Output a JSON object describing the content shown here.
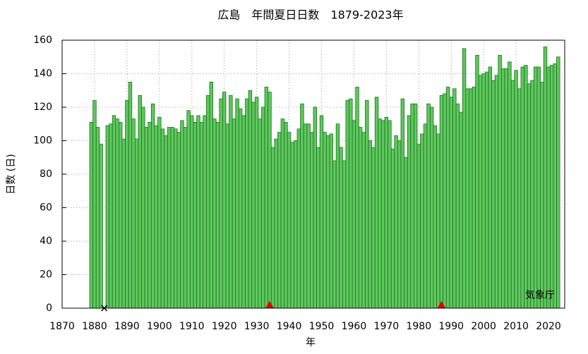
{
  "chart_data": {
    "type": "bar",
    "title": "広島　年間夏日日数　1879-2023年",
    "xlabel": "年",
    "ylabel": "日数 (日)",
    "annotation": "気象庁",
    "x": [
      1879,
      1880,
      1881,
      1882,
      1883,
      1884,
      1885,
      1886,
      1887,
      1888,
      1889,
      1890,
      1891,
      1892,
      1893,
      1894,
      1895,
      1896,
      1897,
      1898,
      1899,
      1900,
      1901,
      1902,
      1903,
      1904,
      1905,
      1906,
      1907,
      1908,
      1909,
      1910,
      1911,
      1912,
      1913,
      1914,
      1915,
      1916,
      1917,
      1918,
      1919,
      1920,
      1921,
      1922,
      1923,
      1924,
      1925,
      1926,
      1927,
      1928,
      1929,
      1930,
      1931,
      1932,
      1933,
      1934,
      1935,
      1936,
      1937,
      1938,
      1939,
      1940,
      1941,
      1942,
      1943,
      1944,
      1945,
      1946,
      1947,
      1948,
      1949,
      1950,
      1951,
      1952,
      1953,
      1954,
      1955,
      1956,
      1957,
      1958,
      1959,
      1960,
      1961,
      1962,
      1963,
      1964,
      1965,
      1966,
      1967,
      1968,
      1969,
      1970,
      1971,
      1972,
      1973,
      1974,
      1975,
      1976,
      1977,
      1978,
      1979,
      1980,
      1981,
      1982,
      1983,
      1984,
      1985,
      1986,
      1987,
      1988,
      1989,
      1990,
      1991,
      1992,
      1993,
      1994,
      1995,
      1996,
      1997,
      1998,
      1999,
      2000,
      2001,
      2002,
      2003,
      2004,
      2005,
      2006,
      2007,
      2008,
      2009,
      2010,
      2011,
      2012,
      2013,
      2014,
      2015,
      2016,
      2017,
      2018,
      2019,
      2020,
      2021,
      2022,
      2023
    ],
    "values": [
      111,
      124,
      108,
      98,
      null,
      109,
      110,
      115,
      113,
      111,
      101,
      124,
      135,
      113,
      101,
      127,
      120,
      108,
      111,
      122,
      109,
      114,
      107,
      103,
      108,
      108,
      107,
      105,
      112,
      108,
      118,
      115,
      111,
      115,
      111,
      115,
      127,
      135,
      113,
      111,
      125,
      129,
      110,
      127,
      113,
      125,
      119,
      115,
      125,
      130,
      123,
      126,
      113,
      120,
      132,
      129,
      96,
      101,
      105,
      113,
      111,
      105,
      99,
      100,
      107,
      122,
      110,
      110,
      105,
      120,
      96,
      115,
      105,
      103,
      104,
      88,
      110,
      96,
      88,
      124,
      125,
      112,
      132,
      108,
      105,
      124,
      100,
      96,
      126,
      113,
      112,
      114,
      112,
      95,
      103,
      100,
      125,
      90,
      115,
      122,
      122,
      98,
      104,
      110,
      122,
      120,
      109,
      104,
      127,
      128,
      132,
      126,
      131,
      122,
      117,
      155,
      131,
      131,
      132,
      151,
      139,
      140,
      141,
      144,
      136,
      139,
      151,
      143,
      143,
      147,
      136,
      142,
      131,
      144,
      145,
      134,
      136,
      144,
      144,
      135,
      156,
      144,
      145,
      146,
      150
    ],
    "color": "#5ec85e",
    "edgecolor": "#1f6e1f",
    "markers": [
      {
        "x": 1883,
        "symbol": "cross",
        "color": "#000000"
      },
      {
        "x": 1934,
        "symbol": "triangle",
        "color": "#e00000"
      },
      {
        "x": 1987,
        "symbol": "triangle",
        "color": "#e00000"
      }
    ],
    "xlim": [
      1870,
      2025
    ],
    "xticks": [
      1870,
      1880,
      1890,
      1900,
      1910,
      1920,
      1930,
      1940,
      1950,
      1960,
      1970,
      1980,
      1990,
      2000,
      2010,
      2020
    ],
    "ylim": [
      0,
      160
    ],
    "yticks": [
      0,
      20,
      40,
      60,
      80,
      100,
      120,
      140,
      160
    ],
    "grid": true
  }
}
